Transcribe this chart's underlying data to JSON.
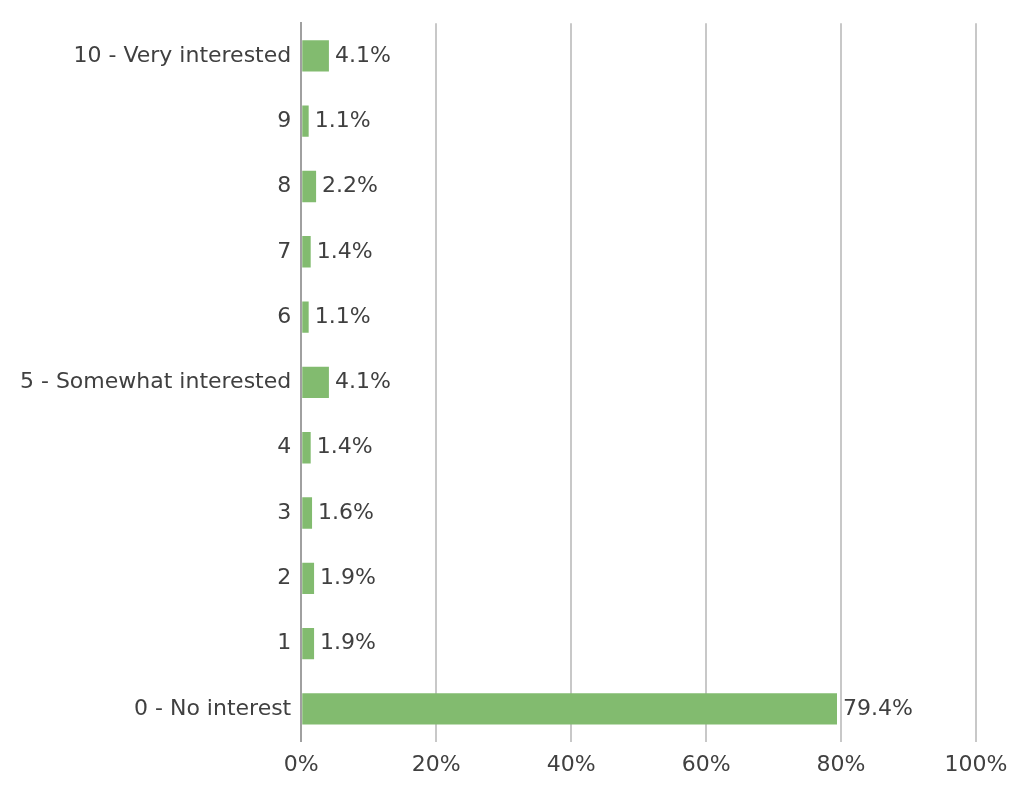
{
  "chart_data": {
    "type": "bar",
    "orientation": "horizontal",
    "categories": [
      "10 - Very interested",
      "9",
      "8",
      "7",
      "6",
      "5 - Somewhat interested",
      "4",
      "3",
      "2",
      "1",
      "0 - No interest"
    ],
    "values": [
      4.1,
      1.1,
      2.2,
      1.4,
      1.1,
      4.1,
      1.4,
      1.6,
      1.9,
      1.9,
      79.4
    ],
    "value_labels": [
      "4.1%",
      "1.1%",
      "2.2%",
      "1.4%",
      "1.1%",
      "4.1%",
      "1.4%",
      "1.6%",
      "1.9%",
      "1.9%",
      "79.4%"
    ],
    "color": "#82bb6f",
    "xlim": [
      0,
      100
    ],
    "xticks": [
      {
        "value": 0,
        "label": "0%"
      },
      {
        "value": 20,
        "label": "20%"
      },
      {
        "value": 40,
        "label": "40%"
      },
      {
        "value": 60,
        "label": "60%"
      },
      {
        "value": 80,
        "label": "80%"
      },
      {
        "value": 100,
        "label": "100%"
      }
    ],
    "grid": "x",
    "legend": false
  }
}
